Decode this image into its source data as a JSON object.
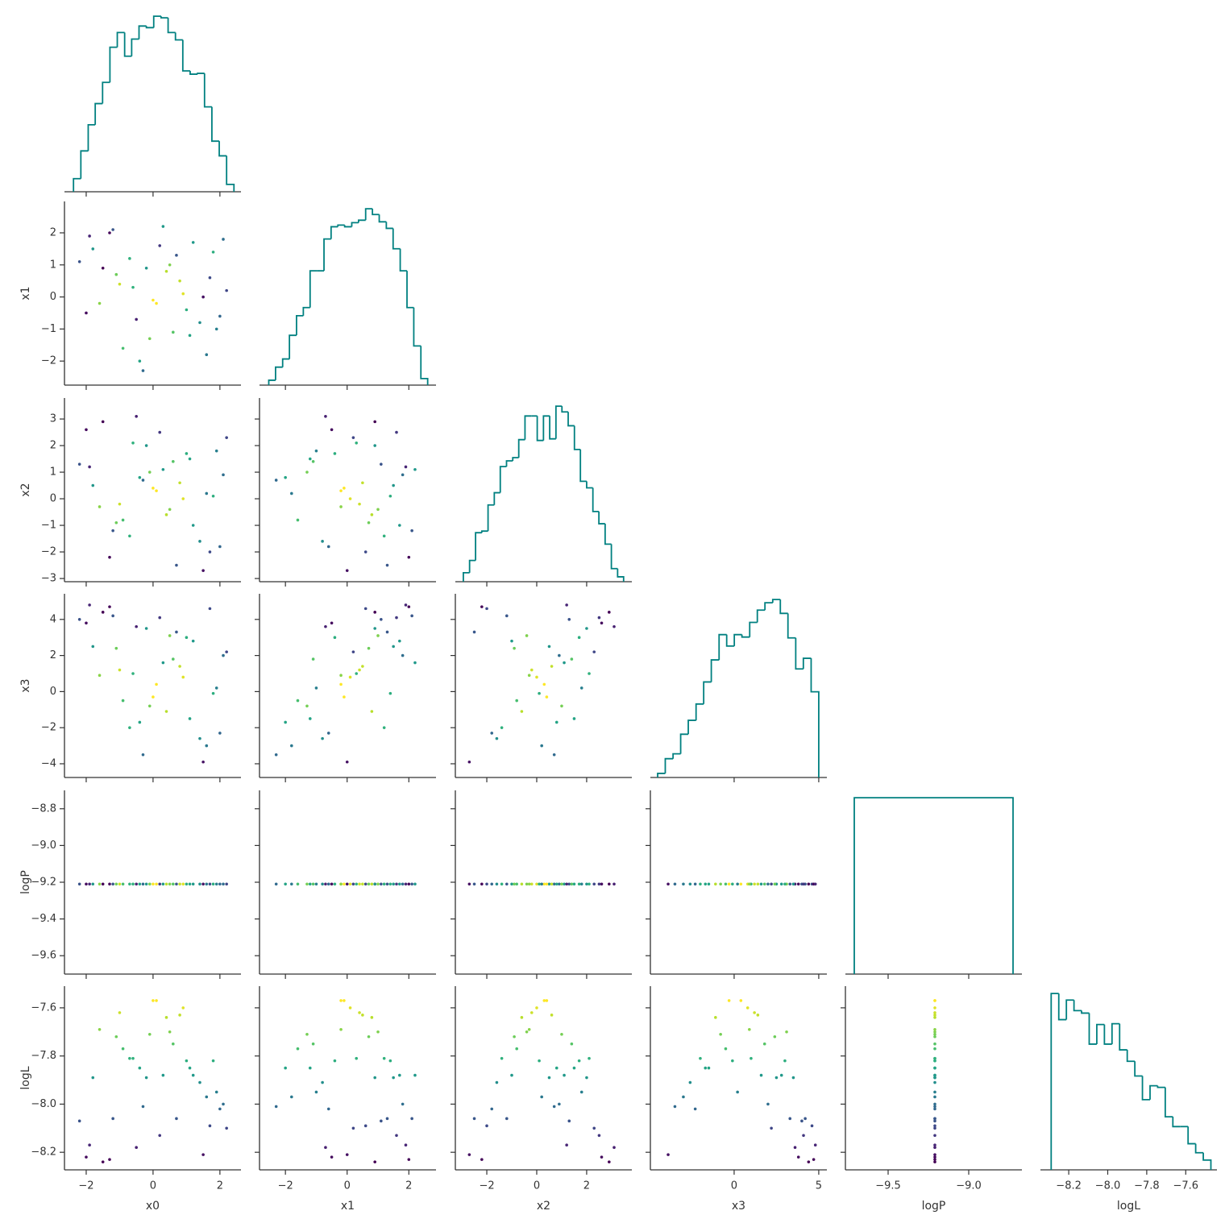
{
  "chart_data": {
    "type": "corner",
    "color": "#008080",
    "color_map": "viridis",
    "color_by": 5,
    "variables": [
      {
        "name": "x0",
        "xlim": [
          -2.65,
          2.63
        ],
        "xticks": [
          {
            "value": -2,
            "label": "−2"
          },
          0,
          2
        ],
        "values": [
          -1.8,
          -1.2,
          -0.6,
          0.1,
          0.5,
          1.1,
          1.7,
          2.1,
          -2.0,
          -0.9,
          0.3,
          0.9,
          1.4,
          -1.5,
          -0.3,
          0.7,
          1.9,
          -1.0,
          0.0,
          1.2,
          -2.2,
          -0.5,
          0.4,
          1.6,
          2.2,
          -1.3,
          -0.1,
          0.8,
          -0.7,
          1.0,
          -1.6,
          0.2,
          1.5,
          -0.4,
          0.6,
          -1.1,
          1.8,
          -0.2,
          2.0,
          -1.9
        ]
      },
      {
        "name": "x1",
        "xlim": [
          -2.84,
          2.88
        ],
        "xticks": [
          {
            "value": -2,
            "label": "−2"
          },
          0,
          2
        ],
        "ylim": [
          -2.75,
          2.98
        ],
        "yticks": [
          {
            "value": -2,
            "label": "−2"
          },
          {
            "value": -1,
            "label": "−1"
          },
          0,
          1,
          2
        ],
        "values": [
          1.5,
          2.1,
          0.3,
          -0.2,
          1.0,
          -1.2,
          0.6,
          1.8,
          -0.5,
          -1.6,
          2.2,
          0.1,
          -0.8,
          0.9,
          -2.3,
          1.3,
          -1.0,
          0.4,
          -0.1,
          1.7,
          1.1,
          -0.7,
          0.8,
          -1.8,
          0.2,
          2.0,
          -1.3,
          0.5,
          1.2,
          -0.4,
          -0.2,
          1.6,
          0.0,
          -2.0,
          -1.1,
          0.7,
          1.4,
          0.9,
          -0.6,
          1.9
        ]
      },
      {
        "name": "x2",
        "xlim": [
          -3.26,
          3.81
        ],
        "xticks": [
          {
            "value": -2,
            "label": "−2"
          },
          0,
          2
        ],
        "ylim": [
          -3.12,
          3.79
        ],
        "yticks": [
          {
            "value": -3,
            "label": "−3"
          },
          {
            "value": -2,
            "label": "−2"
          },
          {
            "value": -1,
            "label": "−1"
          },
          0,
          1,
          2,
          3
        ],
        "values": [
          0.5,
          -1.2,
          2.1,
          0.3,
          -0.4,
          1.5,
          -2.0,
          0.9,
          2.6,
          -0.8,
          1.1,
          0.0,
          -1.6,
          2.9,
          0.7,
          -2.5,
          1.8,
          -0.2,
          0.4,
          -1.0,
          1.3,
          3.1,
          -0.6,
          0.2,
          2.3,
          -2.2,
          1.0,
          0.6,
          -1.4,
          1.7,
          -0.3,
          2.5,
          -2.7,
          0.8,
          1.4,
          -0.9,
          0.1,
          2.0,
          -1.8,
          1.2
        ]
      },
      {
        "name": "x3",
        "xlim": [
          -4.95,
          5.48
        ],
        "xticks": [
          0,
          5
        ],
        "ylim": [
          -4.76,
          5.42
        ],
        "yticks": [
          {
            "value": -4,
            "label": "−4"
          },
          {
            "value": -2,
            "label": "−2"
          },
          0,
          2,
          4
        ],
        "values": [
          2.5,
          4.2,
          1.0,
          0.4,
          3.1,
          -1.5,
          4.6,
          2.0,
          3.8,
          -0.5,
          1.6,
          0.8,
          -2.6,
          4.4,
          -3.5,
          3.3,
          0.2,
          1.2,
          -0.3,
          2.8,
          4.0,
          3.6,
          -1.1,
          -3.0,
          2.2,
          4.7,
          -0.8,
          1.4,
          -2.0,
          3.0,
          0.9,
          4.1,
          -3.9,
          -1.7,
          1.8,
          2.4,
          -0.1,
          3.5,
          -2.3,
          4.8
        ]
      },
      {
        "name": "logP",
        "xlim": [
          -9.765,
          -8.67
        ],
        "xticks": [
          {
            "value": -9.5,
            "label": "−9.5"
          },
          {
            "value": -9.0,
            "label": "−9.0"
          }
        ],
        "ylim": [
          -9.7,
          -8.7
        ],
        "yticks": [
          {
            "value": -9.6,
            "label": "−9.6"
          },
          {
            "value": -9.4,
            "label": "−9.4"
          },
          {
            "value": -9.2,
            "label": "−9.2"
          },
          {
            "value": -9.0,
            "label": "−9.0"
          },
          {
            "value": -8.8,
            "label": "−8.8"
          }
        ],
        "values": [
          -9.21,
          -9.21,
          -9.21,
          -9.21,
          -9.21,
          -9.21,
          -9.21,
          -9.21,
          -9.21,
          -9.21,
          -9.21,
          -9.21,
          -9.21,
          -9.21,
          -9.21,
          -9.21,
          -9.21,
          -9.21,
          -9.21,
          -9.21,
          -9.21,
          -9.21,
          -9.21,
          -9.21,
          -9.21,
          -9.21,
          -9.21,
          -9.21,
          -9.21,
          -9.21,
          -9.21,
          -9.21,
          -9.21,
          -9.21,
          -9.21,
          -9.21,
          -9.21,
          -9.21,
          -9.21,
          -9.21
        ]
      },
      {
        "name": "logL",
        "xlim": [
          -8.345,
          -7.44
        ],
        "xticks": [
          {
            "value": -8.2,
            "label": "−8.2"
          },
          {
            "value": -8.0,
            "label": "−8.0"
          },
          {
            "value": -7.8,
            "label": "−7.8"
          },
          {
            "value": -7.6,
            "label": "−7.6"
          }
        ],
        "ylim": [
          -8.273,
          -7.51
        ],
        "yticks": [
          {
            "value": -8.2,
            "label": "−8.2"
          },
          {
            "value": -8.0,
            "label": "−8.0"
          },
          {
            "value": -7.8,
            "label": "−7.8"
          },
          {
            "value": -7.6,
            "label": "−7.6"
          }
        ],
        "values": [
          -7.89,
          -8.06,
          -7.81,
          -7.57,
          -7.7,
          -7.85,
          -8.09,
          -8.0,
          -8.22,
          -7.77,
          -7.88,
          -7.6,
          -7.91,
          -8.24,
          -8.01,
          -8.06,
          -7.95,
          -7.62,
          -7.57,
          -7.88,
          -8.07,
          -8.18,
          -7.64,
          -7.97,
          -8.1,
          -8.23,
          -7.71,
          -7.63,
          -7.81,
          -7.82,
          -7.69,
          -8.13,
          -8.21,
          -7.85,
          -7.75,
          -7.72,
          -7.82,
          -7.89,
          -8.02,
          -8.17
        ]
      }
    ],
    "histograms": [
      {
        "bins": [
          -2.38,
          -2.16,
          -1.94,
          -1.73,
          -1.51,
          -1.29,
          -1.07,
          -0.85,
          -0.64,
          -0.42,
          -0.2,
          0.02,
          0.24,
          0.45,
          0.67,
          0.89,
          1.11,
          1.33,
          1.54,
          1.76,
          1.98,
          2.2,
          2.42
        ],
        "counts": [
          16,
          50,
          82,
          108,
          134,
          177,
          195,
          166,
          187,
          203,
          201,
          215,
          213,
          195,
          186,
          148,
          144,
          145,
          104,
          62,
          44,
          9
        ],
        "ylim": [
          0,
          225
        ]
      },
      {
        "bins": [
          -2.54,
          -2.32,
          -2.09,
          -1.87,
          -1.64,
          -1.42,
          -1.2,
          -0.97,
          -0.75,
          -0.52,
          -0.3,
          -0.08,
          0.15,
          0.37,
          0.6,
          0.82,
          1.04,
          1.27,
          1.49,
          1.72,
          1.94,
          2.16,
          2.39,
          2.61
        ],
        "counts": [
          6,
          22,
          32,
          61,
          85,
          95,
          140,
          140,
          179,
          194,
          196,
          194,
          199,
          202,
          216,
          209,
          200,
          192,
          167,
          140,
          95,
          48,
          8
        ],
        "ylim": [
          0,
          225
        ]
      },
      {
        "bins": [
          -2.94,
          -2.69,
          -2.45,
          -2.2,
          -1.95,
          -1.7,
          -1.46,
          -1.21,
          -0.96,
          -0.72,
          -0.47,
          -0.22,
          0.02,
          0.27,
          0.52,
          0.77,
          1.01,
          1.26,
          1.51,
          1.75,
          2.0,
          2.25,
          2.49,
          2.74,
          2.99,
          3.24,
          3.48
        ],
        "counts": [
          11,
          26,
          60,
          62,
          94,
          109,
          141,
          148,
          152,
          174,
          203,
          203,
          173,
          203,
          175,
          215,
          208,
          191,
          162,
          123,
          115,
          86,
          71,
          46,
          16,
          6
        ],
        "ylim": [
          0,
          225
        ]
      },
      {
        "bins": [
          -4.52,
          -4.07,
          -3.61,
          -3.16,
          -2.71,
          -2.25,
          -1.8,
          -1.35,
          -0.89,
          -0.44,
          0.01,
          0.46,
          0.92,
          1.37,
          1.82,
          2.28,
          2.73,
          3.18,
          3.64,
          4.09,
          4.55,
          5.0
        ],
        "counts": [
          5,
          23,
          29,
          53,
          70,
          90,
          117,
          144,
          175,
          161,
          175,
          172,
          190,
          205,
          214,
          218,
          201,
          171,
          133,
          146,
          105
        ],
        "ylim": [
          0,
          225
        ]
      },
      {
        "bins": [
          -9.71,
          -8.725
        ],
        "counts": [
          216
        ],
        "ylim": [
          0,
          225
        ]
      },
      {
        "bins": [
          -8.29,
          -8.251,
          -8.212,
          -8.173,
          -8.134,
          -8.095,
          -8.056,
          -8.017,
          -7.978,
          -7.939,
          -7.9,
          -7.861,
          -7.822,
          -7.783,
          -7.744,
          -7.705,
          -7.666,
          -7.627,
          -7.588,
          -7.549,
          -7.51,
          -7.471
        ],
        "counts": [
          216,
          184,
          208,
          195,
          192,
          154,
          178,
          154,
          179,
          147,
          133,
          115,
          86,
          103,
          101,
          65,
          53,
          53,
          32,
          21,
          12
        ],
        "ylim": [
          0,
          225
        ]
      }
    ]
  }
}
